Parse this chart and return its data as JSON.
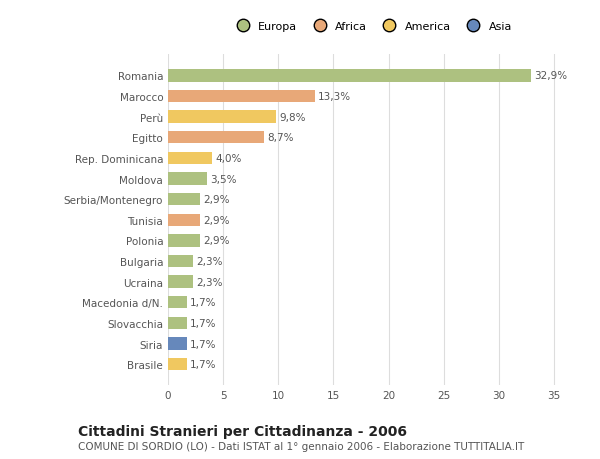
{
  "categories": [
    "Romania",
    "Marocco",
    "Perù",
    "Egitto",
    "Rep. Dominicana",
    "Moldova",
    "Serbia/Montenegro",
    "Tunisia",
    "Polonia",
    "Bulgaria",
    "Ucraina",
    "Macedonia d/N.",
    "Slovacchia",
    "Siria",
    "Brasile"
  ],
  "values": [
    32.9,
    13.3,
    9.8,
    8.7,
    4.0,
    3.5,
    2.9,
    2.9,
    2.9,
    2.3,
    2.3,
    1.7,
    1.7,
    1.7,
    1.7
  ],
  "labels": [
    "32,9%",
    "13,3%",
    "9,8%",
    "8,7%",
    "4,0%",
    "3,5%",
    "2,9%",
    "2,9%",
    "2,9%",
    "2,3%",
    "2,3%",
    "1,7%",
    "1,7%",
    "1,7%",
    "1,7%"
  ],
  "colors": [
    "#adc180",
    "#e8a878",
    "#f0c860",
    "#e8a878",
    "#f0c860",
    "#adc180",
    "#adc180",
    "#e8a878",
    "#adc180",
    "#adc180",
    "#adc180",
    "#adc180",
    "#adc180",
    "#6688bb",
    "#f0c860"
  ],
  "legend_labels": [
    "Europa",
    "Africa",
    "America",
    "Asia"
  ],
  "legend_colors": [
    "#adc180",
    "#e8a878",
    "#f0c860",
    "#6688bb"
  ],
  "xlim": [
    0,
    37
  ],
  "xticks": [
    0,
    5,
    10,
    15,
    20,
    25,
    30,
    35
  ],
  "title": "Cittadini Stranieri per Cittadinanza - 2006",
  "subtitle": "COMUNE DI SORDIO (LO) - Dati ISTAT al 1° gennaio 2006 - Elaborazione TUTTITALIA.IT",
  "bg_color": "#ffffff",
  "plot_bg_color": "#ffffff",
  "bar_height": 0.6,
  "grid_color": "#dddddd",
  "label_fontsize": 7.5,
  "ytick_fontsize": 7.5,
  "xtick_fontsize": 7.5,
  "title_fontsize": 10,
  "subtitle_fontsize": 7.5,
  "legend_fontsize": 8
}
